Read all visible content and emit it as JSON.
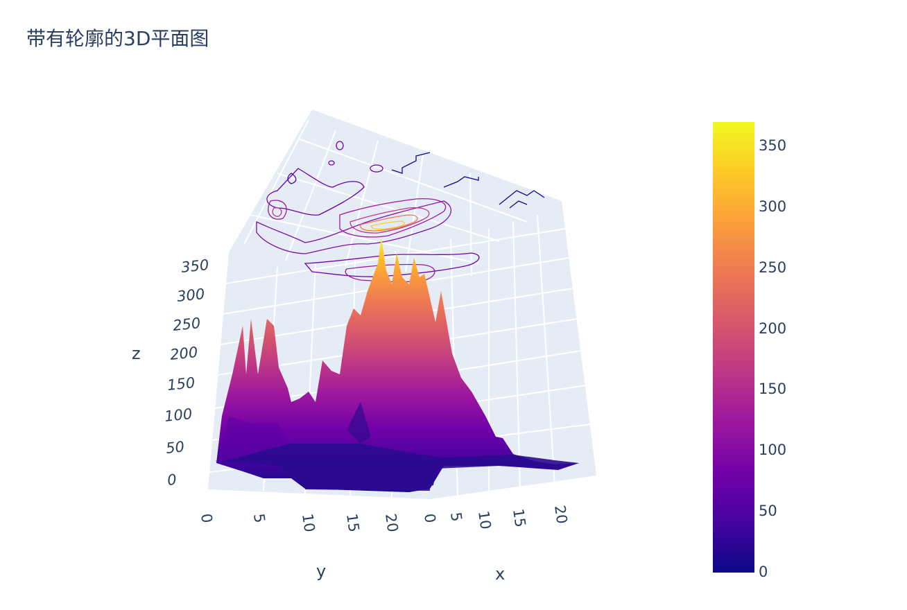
{
  "chart_data": {
    "type": "surface",
    "title": "带有轮廓的3D平面图",
    "colorscale": [
      "#0d0887",
      "#46039f",
      "#7201a8",
      "#9c179e",
      "#bd3786",
      "#d8576b",
      "#ed7953",
      "#fb9f3a",
      "#fdca26",
      "#f0f921"
    ],
    "axes": {
      "x": {
        "title": "x",
        "range": [
          0,
          24
        ],
        "ticks": [
          "0",
          "5",
          "10",
          "15",
          "20"
        ]
      },
      "y": {
        "title": "y",
        "range": [
          0,
          24
        ],
        "ticks": [
          "0",
          "5",
          "10",
          "15",
          "20"
        ]
      },
      "z": {
        "title": "z",
        "range": [
          0,
          380
        ],
        "ticks": [
          "0",
          "50",
          "100",
          "150",
          "200",
          "250",
          "300",
          "350"
        ]
      }
    },
    "colorbar": {
      "range": [
        0,
        370
      ],
      "ticks": [
        "0",
        "50",
        "100",
        "150",
        "200",
        "250",
        "300",
        "350"
      ]
    },
    "contours_projected_on_top": true,
    "surface_peaks_z": [
      {
        "x": 2,
        "y": 4,
        "z": 260
      },
      {
        "x": 4,
        "y": 5,
        "z": 250
      },
      {
        "x": 8,
        "y": 17,
        "z": 230
      },
      {
        "x": 10,
        "y": 12,
        "z": 180
      },
      {
        "x": 14,
        "y": 20,
        "z": 320
      },
      {
        "x": 16,
        "y": 20,
        "z": 370
      },
      {
        "x": 18,
        "y": 21,
        "z": 330
      },
      {
        "x": 19,
        "y": 22,
        "z": 320
      },
      {
        "x": 22,
        "y": 23,
        "z": 260
      }
    ]
  }
}
